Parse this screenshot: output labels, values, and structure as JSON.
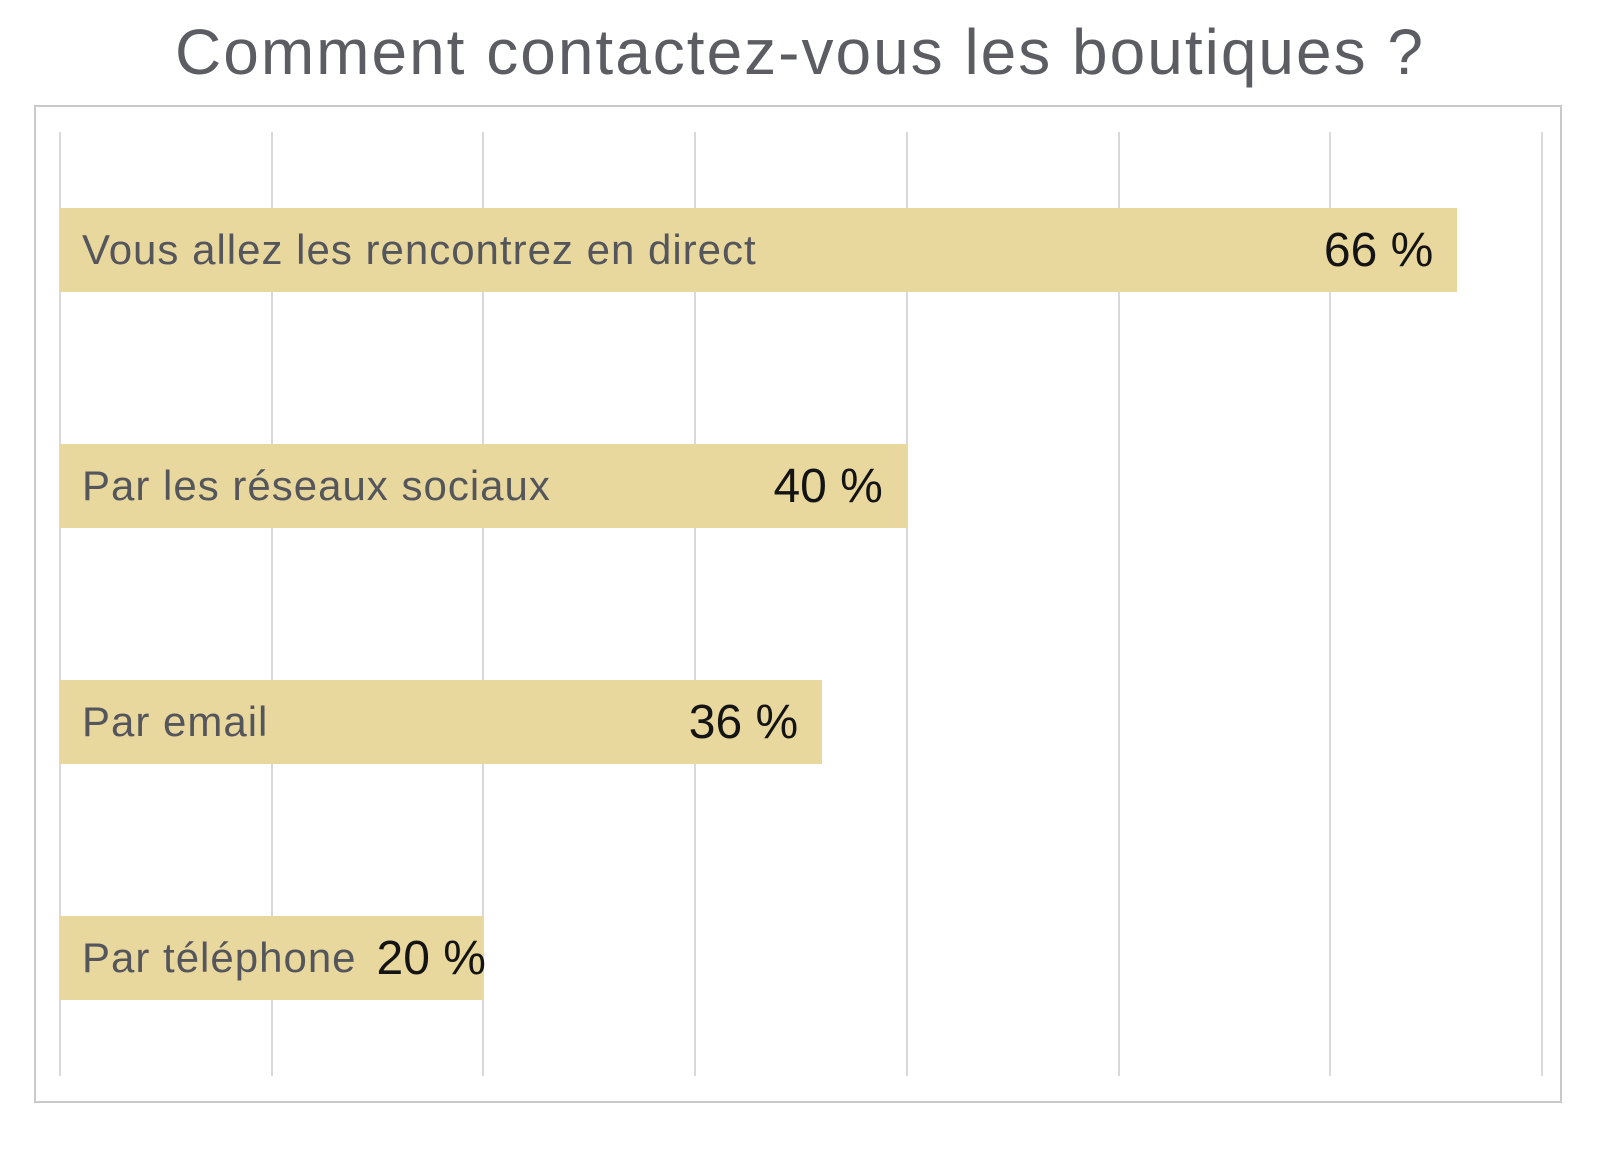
{
  "page": {
    "background": "#ffffff"
  },
  "title": {
    "text": "Comment contactez-vous les boutiques ?",
    "color": "#5b5d62"
  },
  "chart_data": {
    "type": "bar",
    "orientation": "horizontal",
    "title": "Comment contactez-vous les boutiques ?",
    "categories": [
      "Vous allez les rencontrez en direct",
      "Par les réseaux sociaux",
      "Par email",
      "Par téléphone"
    ],
    "values": [
      66,
      40,
      36,
      20
    ],
    "value_labels": [
      "66 %",
      "40 %",
      "36 %",
      "20 %"
    ],
    "value_suffix": " %",
    "xlabel": "",
    "ylabel": "",
    "xlim": [
      0,
      70
    ],
    "gridlines": {
      "interval_percent": 10,
      "count": 8,
      "color": "#d9d9d9",
      "direction": "vertical"
    },
    "legend": "none",
    "colors": {
      "bar": "#e9d89e",
      "category_label": "#55565b",
      "value_label": "#141414",
      "frame_border": "#c9c9c9",
      "title": "#5b5d62",
      "background": "#ffffff"
    },
    "labels_position": "inside-bar-left",
    "values_position": "inside-bar-right"
  }
}
